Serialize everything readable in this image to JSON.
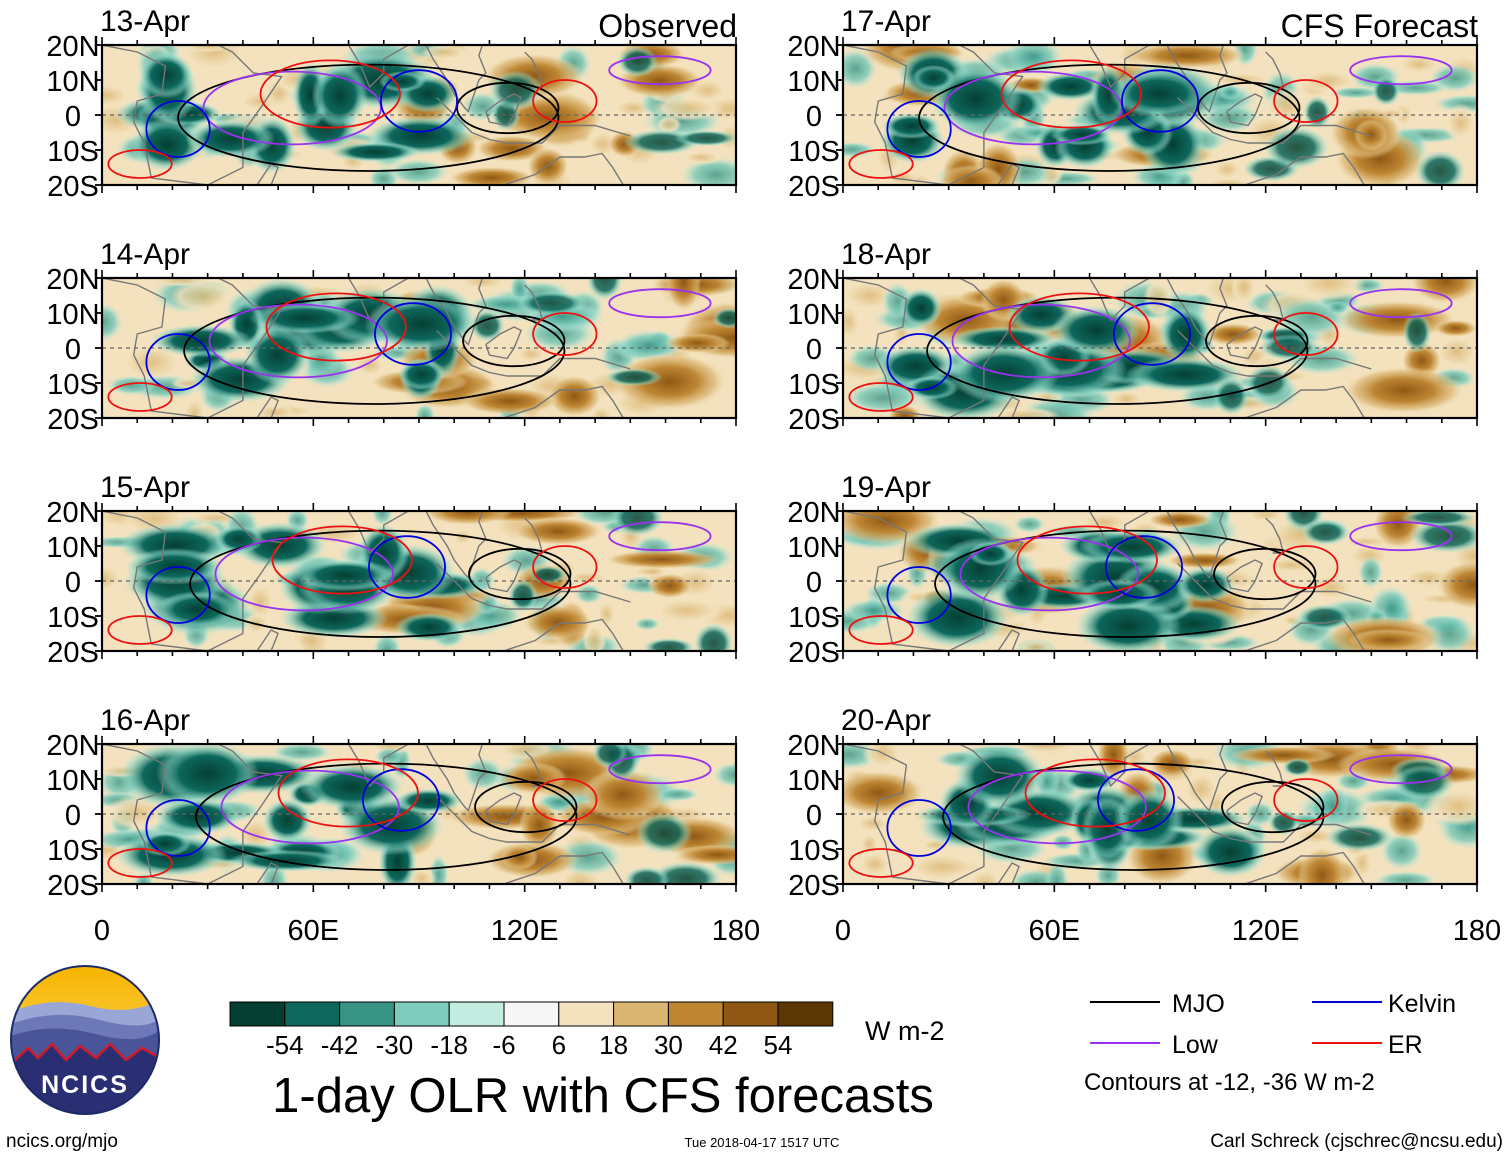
{
  "title": "1-day OLR with CFS forecasts",
  "observed_label": "Observed",
  "forecast_label": "CFS Forecast",
  "panels": {
    "observed": [
      "13-Apr",
      "14-Apr",
      "15-Apr",
      "16-Apr"
    ],
    "forecast": [
      "17-Apr",
      "18-Apr",
      "19-Apr",
      "20-Apr"
    ]
  },
  "lat_ticks": [
    "20N",
    "10N",
    "0",
    "10S",
    "20S"
  ],
  "lon_ticks": [
    "0",
    "60E",
    "120E",
    "180"
  ],
  "colorbar": {
    "labels": [
      "-54",
      "-42",
      "-30",
      "-18",
      "-6",
      "6",
      "18",
      "30",
      "42",
      "54"
    ],
    "colors": [
      "#053f33",
      "#0d675c",
      "#379384",
      "#7ccbbb",
      "#c4ebe0",
      "#f6f6f6",
      "#f3e2bd",
      "#dbb673",
      "#be8633",
      "#8e5814",
      "#5b3706"
    ],
    "units": "W m-2"
  },
  "legend": {
    "items": [
      {
        "label": "MJO",
        "color": "#000000"
      },
      {
        "label": "Kelvin",
        "color": "#0000dd"
      },
      {
        "label": "Low",
        "color": "#9933ee"
      },
      {
        "label": "ER",
        "color": "#ee1111"
      }
    ],
    "note": "Contours at -12, -36 W m-2"
  },
  "logo_text": "NCICS",
  "footer": {
    "url": "ncics.org/mjo",
    "timestamp": "Tue 2018-04-17 1517 UTC",
    "credit": "Carl Schreck (cjschrec@ncsu.edu)"
  }
}
